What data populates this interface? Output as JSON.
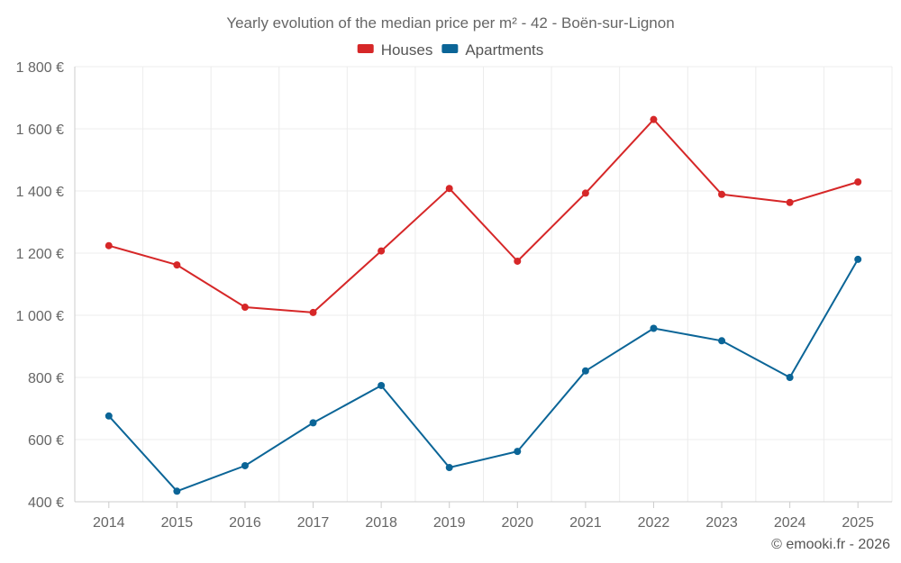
{
  "chart_data": {
    "type": "line",
    "title": "Yearly evolution of the median price per m² - 42 - Boën-sur-Lignon",
    "categories": [
      "2014",
      "2015",
      "2016",
      "2017",
      "2018",
      "2019",
      "2020",
      "2021",
      "2022",
      "2023",
      "2024",
      "2025"
    ],
    "series": [
      {
        "name": "Houses",
        "color": "#d62728",
        "values": [
          1224,
          1162,
          1026,
          1009,
          1207,
          1408,
          1174,
          1393,
          1630,
          1389,
          1363,
          1429
        ]
      },
      {
        "name": "Apartments",
        "color": "#0b6597",
        "values": [
          676,
          434,
          516,
          654,
          774,
          510,
          562,
          821,
          958,
          918,
          800,
          1180
        ]
      }
    ],
    "ylim": [
      400,
      1800
    ],
    "yticks": [
      400,
      600,
      800,
      1000,
      1200,
      1400,
      1600,
      1800
    ],
    "ytick_labels": [
      "400 €",
      "600 €",
      "800 €",
      "1 000 €",
      "1 200 €",
      "1 400 €",
      "1 600 €",
      "1 800 €"
    ],
    "xlabel": "",
    "ylabel": "",
    "grid": true,
    "legend_position": "top-center"
  },
  "credit": "© emooki.fr - 2026"
}
